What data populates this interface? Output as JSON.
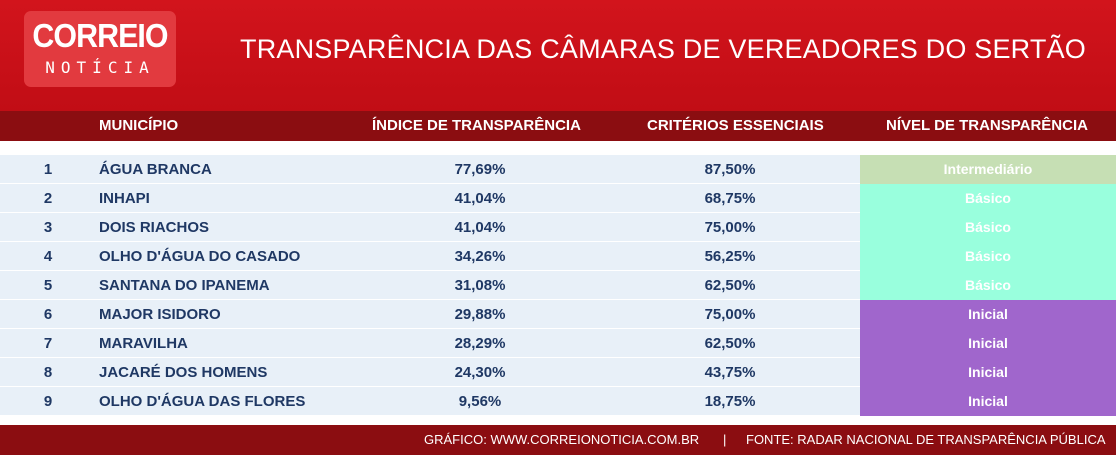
{
  "logo": {
    "main": "CORREIO",
    "sub": "NOTÍCIA"
  },
  "title": "TRANSPARÊNCIA DAS CÂMARAS DE VEREADORES DO SERTÃO",
  "headers": {
    "municipio": "MUNICÍPIO",
    "indice": "ÍNDICE DE TRANSPARÊNCIA",
    "criterios": "CRITÉRIOS ESSENCIAIS",
    "nivel": "NÍVEL DE TRANSPARÊNCIA"
  },
  "level_colors": {
    "Intermediário": "#c6dfb4",
    "Básico": "#99ffdd",
    "Inicial": "#a066cc"
  },
  "rows": [
    {
      "num": "1",
      "municipio": "ÁGUA BRANCA",
      "indice": "77,69%",
      "criterios": "87,50%",
      "nivel": "Intermediário"
    },
    {
      "num": "2",
      "municipio": "INHAPI",
      "indice": "41,04%",
      "criterios": "68,75%",
      "nivel": "Básico"
    },
    {
      "num": "3",
      "municipio": "DOIS RIACHOS",
      "indice": "41,04%",
      "criterios": "75,00%",
      "nivel": "Básico"
    },
    {
      "num": "4",
      "municipio": "OLHO D'ÁGUA DO CASADO",
      "indice": "34,26%",
      "criterios": "56,25%",
      "nivel": "Básico"
    },
    {
      "num": "5",
      "municipio": "SANTANA DO IPANEMA",
      "indice": "31,08%",
      "criterios": "62,50%",
      "nivel": "Básico"
    },
    {
      "num": "6",
      "municipio": "MAJOR ISIDORO",
      "indice": "29,88%",
      "criterios": "75,00%",
      "nivel": "Inicial"
    },
    {
      "num": "7",
      "municipio": "MARAVILHA",
      "indice": "28,29%",
      "criterios": "62,50%",
      "nivel": "Inicial"
    },
    {
      "num": "8",
      "municipio": "JACARÉ DOS HOMENS",
      "indice": "24,30%",
      "criterios": "43,75%",
      "nivel": "Inicial"
    },
    {
      "num": "9",
      "municipio": "OLHO D'ÁGUA DAS FLORES",
      "indice": "9,56%",
      "criterios": "18,75%",
      "nivel": "Inicial"
    }
  ],
  "footer": {
    "grafico": "GRÁFICO: WWW.CORREIONOTICIA.COM.BR",
    "separator": "|",
    "fonte": "FONTE: RADAR NACIONAL DE TRANSPARÊNCIA PÚBLICA"
  }
}
